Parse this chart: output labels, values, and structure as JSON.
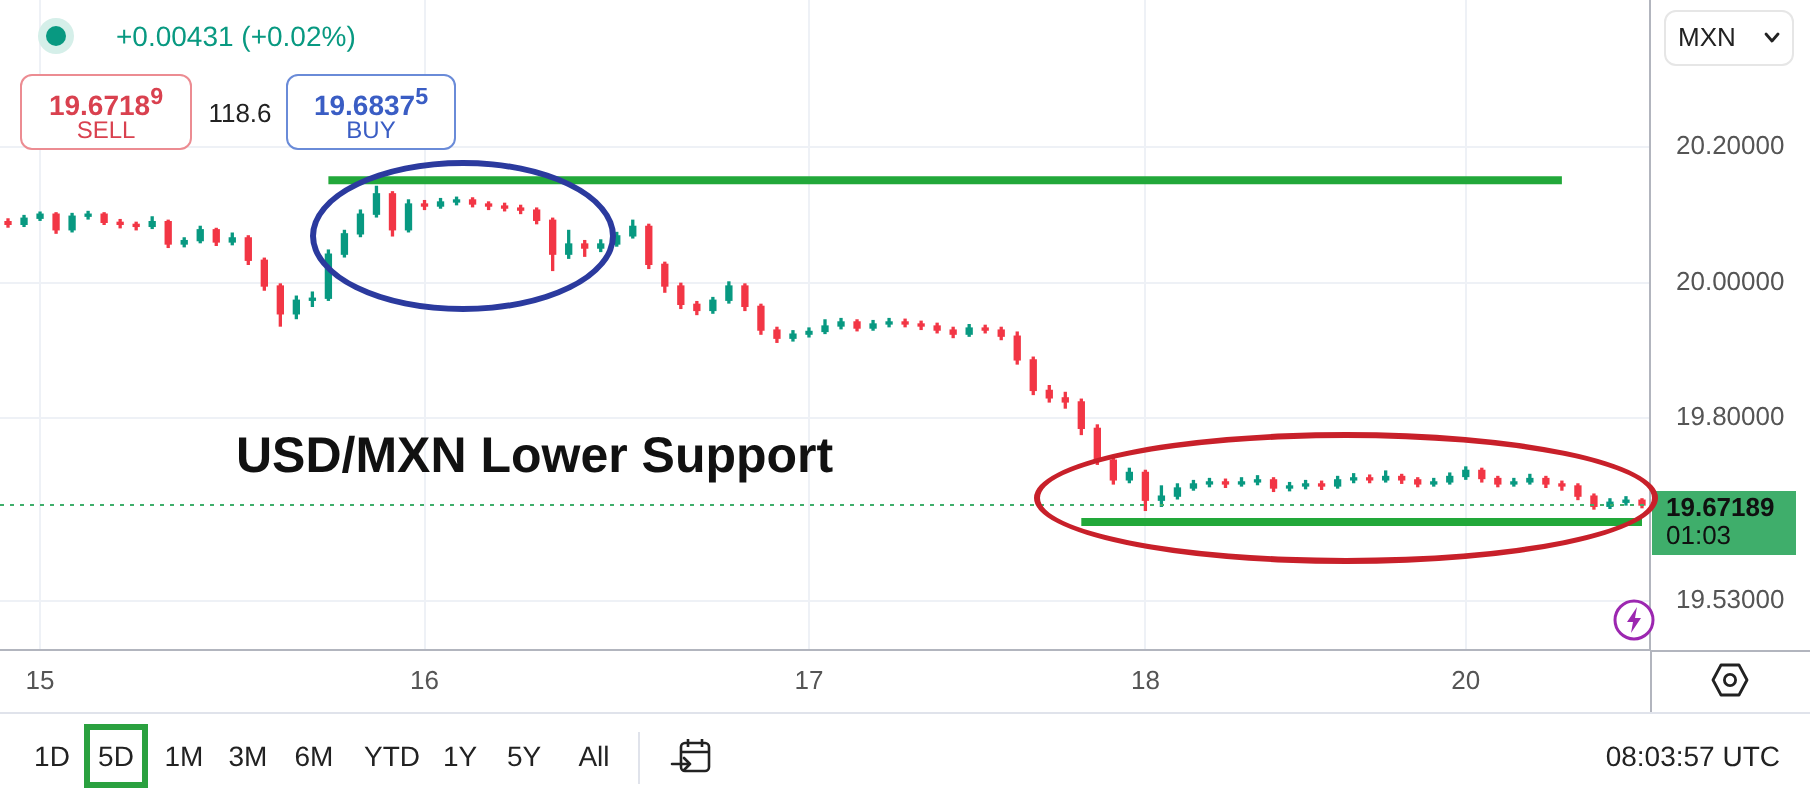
{
  "chart_data": {
    "type": "candlestick",
    "title": "USD/MXN Lower Support",
    "categories": [
      null,
      null,
      "15",
      null,
      null,
      null,
      null,
      null,
      null,
      null,
      null,
      null,
      null,
      null,
      null,
      null,
      null,
      null,
      null,
      null,
      null,
      null,
      null,
      null,
      null,
      null,
      "16",
      null,
      null,
      null,
      null,
      null,
      null,
      null,
      null,
      null,
      null,
      null,
      null,
      null,
      null,
      null,
      null,
      null,
      null,
      null,
      null,
      null,
      null,
      null,
      "17",
      null,
      null,
      null,
      null,
      null,
      null,
      null,
      null,
      null,
      null,
      null,
      null,
      null,
      null,
      null,
      null,
      null,
      null,
      null,
      null,
      "18",
      null,
      null,
      null,
      null,
      null,
      null,
      null,
      null,
      null,
      null,
      null,
      null,
      null,
      null,
      null,
      null,
      null,
      null,
      null,
      "20",
      null,
      null,
      null,
      null,
      null,
      null,
      null,
      null,
      null,
      null,
      null
    ],
    "ohlc": [
      [
        20.09,
        20.094,
        20.082,
        20.086
      ],
      [
        20.086,
        20.099,
        20.083,
        20.095
      ],
      [
        20.095,
        20.104,
        20.092,
        20.101
      ],
      [
        20.101,
        20.103,
        20.073,
        20.078
      ],
      [
        20.078,
        20.102,
        20.075,
        20.098
      ],
      [
        20.098,
        20.105,
        20.094,
        20.101
      ],
      [
        20.101,
        20.103,
        20.086,
        20.089
      ],
      [
        20.089,
        20.093,
        20.081,
        20.086
      ],
      [
        20.086,
        20.089,
        20.078,
        20.083
      ],
      [
        20.083,
        20.097,
        20.08,
        20.09
      ],
      [
        20.09,
        20.092,
        20.052,
        20.057
      ],
      [
        20.057,
        20.066,
        20.053,
        20.062
      ],
      [
        20.062,
        20.083,
        20.059,
        20.078
      ],
      [
        20.078,
        20.08,
        20.055,
        20.06
      ],
      [
        20.06,
        20.073,
        20.056,
        20.066
      ],
      [
        20.066,
        20.069,
        20.027,
        20.033
      ],
      [
        20.033,
        20.036,
        19.989,
        19.995
      ],
      [
        19.995,
        19.998,
        19.936,
        19.954
      ],
      [
        19.954,
        19.98,
        19.947,
        19.974
      ],
      [
        19.974,
        19.986,
        19.965,
        19.977
      ],
      [
        19.977,
        20.048,
        19.974,
        20.042
      ],
      [
        20.042,
        20.077,
        20.038,
        20.072
      ],
      [
        20.072,
        20.107,
        20.068,
        20.101
      ],
      [
        20.101,
        20.142,
        20.097,
        20.131
      ],
      [
        20.131,
        20.134,
        20.069,
        20.078
      ],
      [
        20.078,
        20.122,
        20.075,
        20.116
      ],
      [
        20.116,
        20.121,
        20.108,
        20.113
      ],
      [
        20.113,
        20.124,
        20.11,
        20.119
      ],
      [
        20.119,
        20.126,
        20.115,
        20.122
      ],
      [
        20.122,
        20.125,
        20.112,
        20.116
      ],
      [
        20.116,
        20.119,
        20.108,
        20.113
      ],
      [
        20.113,
        20.117,
        20.106,
        20.11
      ],
      [
        20.11,
        20.114,
        20.102,
        20.107
      ],
      [
        20.107,
        20.11,
        20.087,
        20.092
      ],
      [
        20.092,
        20.095,
        20.018,
        20.042
      ],
      [
        20.042,
        20.077,
        20.036,
        20.057
      ],
      [
        20.057,
        20.062,
        20.039,
        20.051
      ],
      [
        20.051,
        20.063,
        20.046,
        20.057
      ],
      [
        20.057,
        20.074,
        20.054,
        20.069
      ],
      [
        20.069,
        20.092,
        20.066,
        20.083
      ],
      [
        20.083,
        20.086,
        20.021,
        20.027
      ],
      [
        20.027,
        20.03,
        19.986,
        19.995
      ],
      [
        19.995,
        19.999,
        19.962,
        19.968
      ],
      [
        19.968,
        19.972,
        19.953,
        19.959
      ],
      [
        19.959,
        19.978,
        19.955,
        19.974
      ],
      [
        19.974,
        20.001,
        19.97,
        19.995
      ],
      [
        19.995,
        19.998,
        19.959,
        19.965
      ],
      [
        19.965,
        19.968,
        19.924,
        19.93
      ],
      [
        19.93,
        19.934,
        19.912,
        19.918
      ],
      [
        19.918,
        19.929,
        19.914,
        19.924
      ],
      [
        19.924,
        19.933,
        19.92,
        19.928
      ],
      [
        19.928,
        19.945,
        19.925,
        19.936
      ],
      [
        19.936,
        19.947,
        19.932,
        19.942
      ],
      [
        19.942,
        19.945,
        19.929,
        19.933
      ],
      [
        19.933,
        19.944,
        19.93,
        19.939
      ],
      [
        19.939,
        19.947,
        19.935,
        19.942
      ],
      [
        19.942,
        19.946,
        19.935,
        19.939
      ],
      [
        19.939,
        19.943,
        19.931,
        19.936
      ],
      [
        19.936,
        19.94,
        19.926,
        19.93
      ],
      [
        19.93,
        19.934,
        19.919,
        19.924
      ],
      [
        19.924,
        19.938,
        19.921,
        19.933
      ],
      [
        19.933,
        19.937,
        19.926,
        19.93
      ],
      [
        19.93,
        19.934,
        19.916,
        19.921
      ],
      [
        19.921,
        19.927,
        19.88,
        19.886
      ],
      [
        19.886,
        19.89,
        19.835,
        19.841
      ],
      [
        19.841,
        19.848,
        19.824,
        19.83
      ],
      [
        19.83,
        19.838,
        19.815,
        19.824
      ],
      [
        19.824,
        19.828,
        19.776,
        19.785
      ],
      [
        19.785,
        19.79,
        19.732,
        19.738
      ],
      [
        19.738,
        19.742,
        19.703,
        19.709
      ],
      [
        19.709,
        19.726,
        19.705,
        19.72
      ],
      [
        19.72,
        19.723,
        19.664,
        19.679
      ],
      [
        19.679,
        19.7,
        19.67,
        19.685
      ],
      [
        19.685,
        19.703,
        19.681,
        19.697
      ],
      [
        19.697,
        19.708,
        19.694,
        19.703
      ],
      [
        19.703,
        19.711,
        19.699,
        19.706
      ],
      [
        19.706,
        19.71,
        19.698,
        19.703
      ],
      [
        19.703,
        19.712,
        19.7,
        19.706
      ],
      [
        19.706,
        19.715,
        19.702,
        19.709
      ],
      [
        19.709,
        19.712,
        19.692,
        19.697
      ],
      [
        19.697,
        19.705,
        19.693,
        19.7
      ],
      [
        19.7,
        19.708,
        19.696,
        19.703
      ],
      [
        19.703,
        19.707,
        19.695,
        19.7
      ],
      [
        19.7,
        19.714,
        19.697,
        19.709
      ],
      [
        19.709,
        19.718,
        19.705,
        19.711
      ],
      [
        19.711,
        19.716,
        19.705,
        19.709
      ],
      [
        19.709,
        19.722,
        19.706,
        19.714
      ],
      [
        19.714,
        19.717,
        19.704,
        19.709
      ],
      [
        19.709,
        19.712,
        19.699,
        19.703
      ],
      [
        19.703,
        19.711,
        19.7,
        19.706
      ],
      [
        19.706,
        19.719,
        19.703,
        19.714
      ],
      [
        19.714,
        19.728,
        19.71,
        19.723
      ],
      [
        19.723,
        19.726,
        19.706,
        19.711
      ],
      [
        19.711,
        19.714,
        19.699,
        19.703
      ],
      [
        19.703,
        19.711,
        19.7,
        19.706
      ],
      [
        19.706,
        19.717,
        19.703,
        19.711
      ],
      [
        19.711,
        19.714,
        19.698,
        19.703
      ],
      [
        19.703,
        19.707,
        19.694,
        19.7
      ],
      [
        19.7,
        19.703,
        19.68,
        19.685
      ],
      [
        19.685,
        19.688,
        19.666,
        19.67
      ],
      [
        19.67,
        19.681,
        19.667,
        19.676
      ],
      [
        19.676,
        19.684,
        19.672,
        19.679
      ],
      [
        19.679,
        19.681,
        19.668,
        19.67189
      ]
    ],
    "series": [
      {
        "type": "line",
        "color": "#22a83a",
        "values": [
          null,
          null,
          null,
          null,
          null,
          null,
          null,
          null,
          null,
          null,
          null,
          null,
          null,
          null,
          null,
          null,
          null,
          null,
          null,
          null,
          20.151,
          20.151,
          20.151,
          20.151,
          20.151,
          20.151,
          20.151,
          20.151,
          20.151,
          20.151,
          20.151,
          20.151,
          20.151,
          20.151,
          20.151,
          20.151,
          20.151,
          20.151,
          20.151,
          20.151,
          20.151,
          20.151,
          20.151,
          20.151,
          20.151,
          20.151,
          20.151,
          20.151,
          20.151,
          20.151,
          20.151,
          20.151,
          20.151,
          20.151,
          20.151,
          20.151,
          20.151,
          20.151,
          20.151,
          20.151,
          20.151,
          20.151,
          20.151,
          20.151,
          20.151,
          20.151,
          20.151,
          20.151,
          20.151,
          20.151,
          20.151,
          20.151,
          20.151,
          20.151,
          20.151,
          20.151,
          20.151,
          20.151,
          20.151,
          20.151,
          20.151,
          20.151,
          20.151,
          20.151,
          20.151,
          20.151,
          20.151,
          20.151,
          20.151,
          20.151,
          20.151,
          20.151,
          20.151,
          20.151,
          20.151,
          20.151,
          20.151,
          20.151,
          null,
          null,
          null,
          null,
          null
        ]
      },
      {
        "type": "line",
        "color": "#22a83a",
        "values": [
          null,
          null,
          null,
          null,
          null,
          null,
          null,
          null,
          null,
          null,
          null,
          null,
          null,
          null,
          null,
          null,
          null,
          null,
          null,
          null,
          null,
          null,
          null,
          null,
          null,
          null,
          null,
          null,
          null,
          null,
          null,
          null,
          null,
          null,
          null,
          null,
          null,
          null,
          null,
          null,
          null,
          null,
          null,
          null,
          null,
          null,
          null,
          null,
          null,
          null,
          null,
          null,
          null,
          null,
          null,
          null,
          null,
          null,
          null,
          null,
          null,
          null,
          null,
          null,
          null,
          null,
          null,
          19.647,
          19.647,
          19.647,
          19.647,
          19.647,
          19.647,
          19.647,
          19.647,
          19.647,
          19.647,
          19.647,
          19.647,
          19.647,
          19.647,
          19.647,
          19.647,
          19.647,
          19.647,
          19.647,
          19.647,
          19.647,
          19.647,
          19.647,
          19.647,
          19.647,
          19.647,
          19.647,
          19.647,
          19.647,
          19.647,
          19.647,
          19.647,
          19.647,
          19.647,
          19.647,
          19.647
        ]
      }
    ],
    "ylim": [
      19.458,
      20.417
    ],
    "yticks": [
      {
        "value": 20.2,
        "label": "20.20000"
      },
      {
        "value": 20,
        "label": "20.00000"
      },
      {
        "value": 19.8,
        "label": "19.80000"
      },
      {
        "value": 19.53,
        "label": "19.53000"
      }
    ],
    "ref_lines": [
      {
        "axis": "y",
        "value": 19.67189,
        "label": "19.67189",
        "color": "#3fae6b",
        "line_style": "dotted"
      }
    ],
    "grid": true,
    "annotations": [
      "+0.00431 (+0.02%)",
      "19.6718$^{9}$",
      "SELL",
      "118.6",
      "19.6837$^{5}$",
      "BUY",
      "MXN",
      "1D",
      "5D",
      "1M",
      "3M",
      "6M",
      "YTD",
      "1Y",
      "5Y",
      "All",
      "08:03:57 UTC",
      "01:03"
    ]
  }
}
